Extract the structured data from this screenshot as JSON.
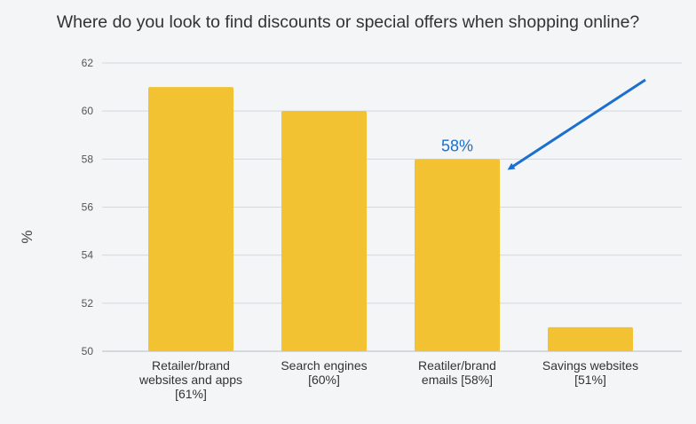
{
  "chart_data": {
    "type": "bar",
    "title": "Where do you look to find discounts or special offers when shopping online?",
    "ylabel": "%",
    "xlabel": "",
    "ylim": [
      50,
      62
    ],
    "yticks": [
      50,
      52,
      54,
      56,
      58,
      60,
      62
    ],
    "grid": true,
    "categories": [
      "Retailer/brand websites and apps [61%]",
      "Search engines [60%]",
      "Reatiler/brand emails [58%]",
      "Savings websites [51%]"
    ],
    "category_lines": [
      [
        "Retailer/brand",
        "websites and apps",
        "[61%]"
      ],
      [
        "Search engines",
        "[60%]"
      ],
      [
        "Reatiler/brand",
        "emails [58%]"
      ],
      [
        "Savings websites",
        "[51%]"
      ]
    ],
    "values": [
      61,
      60,
      58,
      51
    ],
    "annotation": {
      "text": "58%",
      "target_category": "Reatiler/brand emails [58%]"
    },
    "colors": {
      "bar": "#f2c232",
      "annotation": "#1a6fcf",
      "grid": "#d5d8dc"
    }
  }
}
